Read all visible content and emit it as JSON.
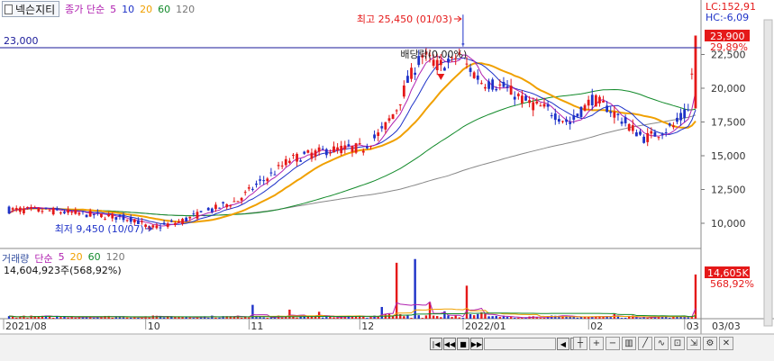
{
  "header": {
    "stock_name": "넥슨지티",
    "indicator_label": "종가 단순",
    "ma": [
      "5",
      "10",
      "20",
      "60",
      "120"
    ]
  },
  "volume_header": {
    "label": "거래량",
    "indicator_label": "단순",
    "ma": [
      "5",
      "20",
      "60",
      "120"
    ],
    "current_volume": "14,604,923주(568,92%)"
  },
  "right_panel": {
    "lc": "LC:152,91",
    "hc": "HC:-6,09",
    "price_badge": "23,900",
    "price_pct": "29,89%",
    "volume_badge": "14,605K",
    "volume_pct": "568,92%"
  },
  "hline_label": "23,000",
  "annotations": {
    "high": "최고 25,450 (01/03)",
    "low": "최저 9,450 (10/07)",
    "dividend": "배당락(0,00%)"
  },
  "date_end_label": "03/03",
  "colors": {
    "up": "#e51919",
    "down": "#1e32c8",
    "ma5": "#b020b0",
    "ma10": "#1e32c8",
    "ma20": "#f0a000",
    "ma60": "#128a2a",
    "ma120": "#888888"
  },
  "chart_data": {
    "type": "candlestick",
    "price_axis": {
      "ticks": [
        10000,
        12500,
        15000,
        17500,
        20000,
        22500
      ],
      "tick_labels": [
        "10,000",
        "12,500",
        "15,000",
        "17,500",
        "20,000",
        "22,500"
      ]
    },
    "x_axis_labels": [
      "2021/08",
      "10",
      "11",
      "12",
      "2022/01",
      "02",
      "03"
    ],
    "reference_line": 23000,
    "anchors": [
      [
        0,
        11000
      ],
      [
        10,
        10950
      ],
      [
        20,
        10700
      ],
      [
        28,
        10500
      ],
      [
        34,
        10300
      ],
      [
        38,
        9600
      ],
      [
        46,
        10100
      ],
      [
        54,
        10900
      ],
      [
        62,
        11700
      ],
      [
        66,
        12600
      ],
      [
        72,
        13800
      ],
      [
        76,
        14700
      ],
      [
        80,
        15000
      ],
      [
        86,
        15400
      ],
      [
        90,
        15500
      ],
      [
        96,
        15600
      ],
      [
        101,
        16800
      ],
      [
        105,
        18500
      ],
      [
        108,
        20500
      ],
      [
        112,
        22500
      ],
      [
        116,
        21700
      ],
      [
        120,
        21900
      ],
      [
        123,
        23000
      ],
      [
        124,
        21700
      ],
      [
        128,
        20500
      ],
      [
        134,
        20100
      ],
      [
        140,
        19000
      ],
      [
        146,
        18400
      ],
      [
        152,
        17400
      ],
      [
        158,
        19200
      ],
      [
        162,
        18600
      ],
      [
        168,
        17200
      ],
      [
        172,
        16300
      ],
      [
        176,
        16700
      ],
      [
        180,
        17200
      ],
      [
        184,
        18300
      ],
      [
        186,
        23900
      ]
    ],
    "volume": {
      "spikes": [
        [
          66,
          2.6
        ],
        [
          76,
          1.7
        ],
        [
          84,
          1.3
        ],
        [
          101,
          2.2
        ],
        [
          105,
          10.5
        ],
        [
          110,
          11.2
        ],
        [
          114,
          3.1
        ],
        [
          118,
          1.4
        ],
        [
          124,
          6.2
        ],
        [
          128,
          1.2
        ],
        [
          164,
          0.9
        ],
        [
          186,
          8.3
        ]
      ]
    }
  }
}
